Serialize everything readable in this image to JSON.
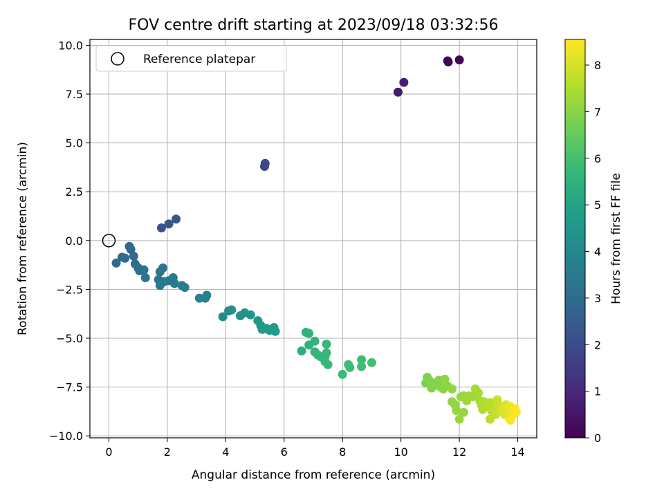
{
  "chart_data": {
    "type": "scatter",
    "title": "FOV centre drift starting at 2023/09/18 03:32:56",
    "xlabel": "Angular distance from reference (arcmin)",
    "ylabel": "Rotation from reference (arcmin)",
    "xlim": [
      -0.65,
      14.65
    ],
    "ylim": [
      -10.1,
      10.3
    ],
    "xticks": [
      0,
      2,
      4,
      6,
      8,
      10,
      12,
      14
    ],
    "xtick_labels": [
      "0",
      "2",
      "4",
      "6",
      "8",
      "10",
      "12",
      "14"
    ],
    "yticks": [
      -10.0,
      -7.5,
      -5.0,
      -2.5,
      0.0,
      2.5,
      5.0,
      7.5,
      10.0
    ],
    "ytick_labels": [
      "−10.0",
      "−7.5",
      "−5.0",
      "−2.5",
      "0.0",
      "2.5",
      "5.0",
      "7.5",
      "10.0"
    ],
    "grid": true,
    "legend": {
      "location": "upper left",
      "entries": [
        "Reference platepar"
      ]
    },
    "reference_point": {
      "x": 0,
      "y": 0,
      "label": "Reference platepar",
      "marker": "open-circle",
      "color": "#000000"
    },
    "colorbar": {
      "label": "Hours from first FF file",
      "range": [
        0,
        8.55
      ],
      "ticks": [
        0,
        1,
        2,
        3,
        4,
        5,
        6,
        7,
        8
      ],
      "tick_labels": [
        "0",
        "1",
        "2",
        "3",
        "4",
        "5",
        "6",
        "7",
        "8"
      ],
      "colormap": "viridis",
      "colormap_stops": [
        "#440154",
        "#482878",
        "#3e4989",
        "#31688e",
        "#26828e",
        "#1f9e89",
        "#35b779",
        "#6ece58",
        "#b5de2b",
        "#fde725"
      ]
    },
    "series": [
      {
        "points": [
          {
            "x": 11.6,
            "y": 9.2,
            "c": 0.05
          },
          {
            "x": 11.62,
            "y": 9.15,
            "c": 0.08
          },
          {
            "x": 12.0,
            "y": 9.25,
            "c": 0.1
          },
          {
            "x": 9.9,
            "y": 7.6,
            "c": 0.6
          },
          {
            "x": 10.1,
            "y": 8.1,
            "c": 0.7
          },
          {
            "x": 5.35,
            "y": 3.95,
            "c": 1.8
          },
          {
            "x": 5.33,
            "y": 3.8,
            "c": 1.85
          },
          {
            "x": 1.8,
            "y": 0.65,
            "c": 2.25
          },
          {
            "x": 2.05,
            "y": 0.85,
            "c": 2.3
          },
          {
            "x": 2.3,
            "y": 1.1,
            "c": 2.35
          },
          {
            "x": 0.25,
            "y": -1.15,
            "c": 2.9
          },
          {
            "x": 0.45,
            "y": -0.85,
            "c": 2.95
          },
          {
            "x": 0.55,
            "y": -0.9,
            "c": 2.95
          },
          {
            "x": 0.7,
            "y": -0.3,
            "c": 2.85
          },
          {
            "x": 0.75,
            "y": -0.45,
            "c": 2.9
          },
          {
            "x": 0.85,
            "y": -0.8,
            "c": 3.0
          },
          {
            "x": 0.9,
            "y": -1.2,
            "c": 3.0
          },
          {
            "x": 1.0,
            "y": -1.4,
            "c": 3.1
          },
          {
            "x": 1.05,
            "y": -1.55,
            "c": 3.1
          },
          {
            "x": 1.2,
            "y": -1.5,
            "c": 3.15
          },
          {
            "x": 1.25,
            "y": -1.9,
            "c": 3.2
          },
          {
            "x": 1.75,
            "y": -1.6,
            "c": 3.3
          },
          {
            "x": 1.85,
            "y": -1.4,
            "c": 3.35
          },
          {
            "x": 1.7,
            "y": -2.0,
            "c": 3.35
          },
          {
            "x": 1.9,
            "y": -2.1,
            "c": 3.4
          },
          {
            "x": 1.75,
            "y": -2.3,
            "c": 3.4
          },
          {
            "x": 2.05,
            "y": -2.05,
            "c": 3.45
          },
          {
            "x": 2.2,
            "y": -1.9,
            "c": 3.5
          },
          {
            "x": 2.25,
            "y": -2.2,
            "c": 3.5
          },
          {
            "x": 2.5,
            "y": -2.3,
            "c": 3.55
          },
          {
            "x": 2.6,
            "y": -2.4,
            "c": 3.6
          },
          {
            "x": 3.1,
            "y": -2.95,
            "c": 3.8
          },
          {
            "x": 3.3,
            "y": -2.95,
            "c": 3.85
          },
          {
            "x": 3.35,
            "y": -2.8,
            "c": 3.85
          },
          {
            "x": 3.9,
            "y": -3.9,
            "c": 4.1
          },
          {
            "x": 4.1,
            "y": -3.6,
            "c": 4.15
          },
          {
            "x": 4.2,
            "y": -3.55,
            "c": 4.2
          },
          {
            "x": 4.5,
            "y": -3.85,
            "c": 4.3
          },
          {
            "x": 4.65,
            "y": -3.7,
            "c": 4.35
          },
          {
            "x": 4.85,
            "y": -3.8,
            "c": 4.4
          },
          {
            "x": 5.1,
            "y": -4.1,
            "c": 4.5
          },
          {
            "x": 5.2,
            "y": -4.35,
            "c": 4.55
          },
          {
            "x": 5.25,
            "y": -4.55,
            "c": 4.6
          },
          {
            "x": 5.4,
            "y": -4.5,
            "c": 4.6
          },
          {
            "x": 5.5,
            "y": -4.6,
            "c": 4.65
          },
          {
            "x": 5.65,
            "y": -4.45,
            "c": 4.7
          },
          {
            "x": 5.7,
            "y": -4.65,
            "c": 4.7
          },
          {
            "x": 6.6,
            "y": -5.65,
            "c": 5.4
          },
          {
            "x": 6.75,
            "y": -4.7,
            "c": 5.45
          },
          {
            "x": 6.85,
            "y": -4.75,
            "c": 5.5
          },
          {
            "x": 6.85,
            "y": -5.35,
            "c": 5.5
          },
          {
            "x": 7.05,
            "y": -5.15,
            "c": 5.55
          },
          {
            "x": 7.05,
            "y": -5.7,
            "c": 5.6
          },
          {
            "x": 7.15,
            "y": -5.85,
            "c": 5.6
          },
          {
            "x": 7.25,
            "y": -5.95,
            "c": 5.65
          },
          {
            "x": 7.4,
            "y": -5.95,
            "c": 5.65
          },
          {
            "x": 7.45,
            "y": -5.3,
            "c": 5.7
          },
          {
            "x": 7.45,
            "y": -5.75,
            "c": 5.7
          },
          {
            "x": 7.4,
            "y": -6.2,
            "c": 5.75
          },
          {
            "x": 7.5,
            "y": -6.35,
            "c": 5.75
          },
          {
            "x": 8.0,
            "y": -6.85,
            "c": 5.8
          },
          {
            "x": 8.2,
            "y": -6.35,
            "c": 5.85
          },
          {
            "x": 8.25,
            "y": -6.5,
            "c": 5.85
          },
          {
            "x": 8.65,
            "y": -6.1,
            "c": 5.9
          },
          {
            "x": 8.65,
            "y": -6.45,
            "c": 5.9
          },
          {
            "x": 9.0,
            "y": -6.25,
            "c": 5.95
          },
          {
            "x": 10.85,
            "y": -7.3,
            "c": 6.8
          },
          {
            "x": 10.9,
            "y": -7.0,
            "c": 6.85
          },
          {
            "x": 11.0,
            "y": -7.2,
            "c": 6.9
          },
          {
            "x": 11.05,
            "y": -7.55,
            "c": 6.9
          },
          {
            "x": 11.2,
            "y": -7.35,
            "c": 6.95
          },
          {
            "x": 11.3,
            "y": -7.15,
            "c": 6.95
          },
          {
            "x": 11.35,
            "y": -7.5,
            "c": 7.0
          },
          {
            "x": 11.45,
            "y": -7.6,
            "c": 7.0
          },
          {
            "x": 11.5,
            "y": -7.1,
            "c": 7.05
          },
          {
            "x": 11.6,
            "y": -7.45,
            "c": 7.05
          },
          {
            "x": 11.75,
            "y": -7.6,
            "c": 7.1
          },
          {
            "x": 11.75,
            "y": -8.25,
            "c": 7.1
          },
          {
            "x": 11.85,
            "y": -8.4,
            "c": 7.15
          },
          {
            "x": 11.9,
            "y": -8.7,
            "c": 7.15
          },
          {
            "x": 12.0,
            "y": -9.15,
            "c": 7.2
          },
          {
            "x": 12.15,
            "y": -8.8,
            "c": 7.2
          },
          {
            "x": 12.05,
            "y": -8.0,
            "c": 7.2
          },
          {
            "x": 12.15,
            "y": -7.95,
            "c": 7.25
          },
          {
            "x": 12.25,
            "y": -8.2,
            "c": 7.25
          },
          {
            "x": 12.35,
            "y": -7.95,
            "c": 7.3
          },
          {
            "x": 12.45,
            "y": -8.0,
            "c": 7.3
          },
          {
            "x": 12.55,
            "y": -7.6,
            "c": 7.35
          },
          {
            "x": 12.65,
            "y": -7.8,
            "c": 7.35
          },
          {
            "x": 12.7,
            "y": -8.2,
            "c": 7.4
          },
          {
            "x": 12.75,
            "y": -8.4,
            "c": 7.45
          },
          {
            "x": 12.85,
            "y": -8.25,
            "c": 7.5
          },
          {
            "x": 12.8,
            "y": -8.65,
            "c": 7.5
          },
          {
            "x": 12.95,
            "y": -8.5,
            "c": 7.55
          },
          {
            "x": 13.05,
            "y": -8.3,
            "c": 7.6
          },
          {
            "x": 13.1,
            "y": -8.7,
            "c": 7.65
          },
          {
            "x": 13.05,
            "y": -9.15,
            "c": 7.7
          },
          {
            "x": 13.2,
            "y": -8.6,
            "c": 7.75
          },
          {
            "x": 13.25,
            "y": -8.9,
            "c": 7.8
          },
          {
            "x": 13.3,
            "y": -8.15,
            "c": 7.85
          },
          {
            "x": 13.35,
            "y": -8.45,
            "c": 7.9
          },
          {
            "x": 13.45,
            "y": -8.75,
            "c": 8.0
          },
          {
            "x": 13.5,
            "y": -8.55,
            "c": 8.05
          },
          {
            "x": 13.55,
            "y": -8.9,
            "c": 8.1
          },
          {
            "x": 13.6,
            "y": -8.4,
            "c": 8.15
          },
          {
            "x": 13.65,
            "y": -8.7,
            "c": 8.2
          },
          {
            "x": 13.7,
            "y": -9.05,
            "c": 8.25
          },
          {
            "x": 13.75,
            "y": -8.5,
            "c": 8.3
          },
          {
            "x": 13.8,
            "y": -8.75,
            "c": 8.35
          },
          {
            "x": 13.85,
            "y": -8.9,
            "c": 8.4
          },
          {
            "x": 13.75,
            "y": -9.2,
            "c": 8.45
          },
          {
            "x": 13.9,
            "y": -8.6,
            "c": 8.5
          },
          {
            "x": 13.95,
            "y": -8.8,
            "c": 8.55
          }
        ]
      }
    ]
  }
}
